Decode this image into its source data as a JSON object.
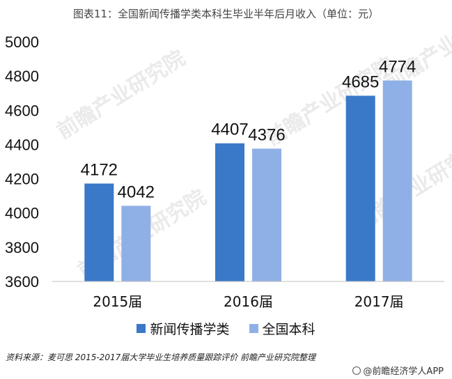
{
  "title": "图表11：全国新闻传播学类本科生毕业半年后月收入（单位：元）",
  "chart_data": {
    "type": "bar",
    "categories": [
      "2015届",
      "2016届",
      "2017届"
    ],
    "series": [
      {
        "name": "新闻传播学类",
        "values": [
          4172,
          4407,
          4685
        ],
        "color": "#3a78c8"
      },
      {
        "name": "全国本科",
        "values": [
          4042,
          4376,
          4774
        ],
        "color": "#8fb0e6"
      }
    ],
    "ylim": [
      3600,
      5000
    ],
    "yticks": [
      3600,
      3800,
      4000,
      4200,
      4400,
      4600,
      4800,
      5000
    ],
    "legend_position": "bottom",
    "grid": false
  },
  "source": "资料来源：麦可思 2015-2017届大学毕业生培养质量跟踪评价  前瞻产业研究院整理",
  "brand": "@前瞻经济学人APP",
  "watermark": "前瞻产业研究院"
}
